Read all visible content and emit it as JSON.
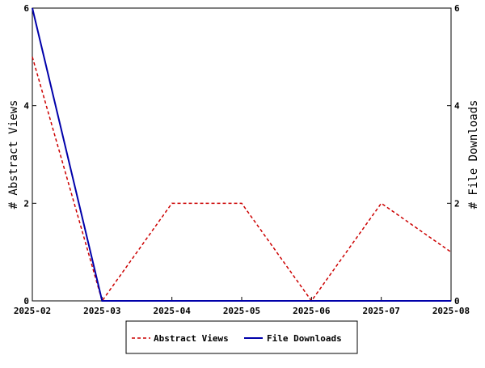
{
  "chart_data": {
    "type": "line",
    "categories": [
      "2025-02",
      "2025-03",
      "2025-04",
      "2025-05",
      "2025-06",
      "2025-07",
      "2025-08"
    ],
    "series": [
      {
        "name": "Abstract Views",
        "values": [
          5,
          0,
          2,
          2,
          0,
          2,
          1
        ],
        "color": "#cc0000",
        "dash": "dashed",
        "axis": "left"
      },
      {
        "name": "File Downloads",
        "values": [
          6,
          0,
          0,
          0,
          0,
          0,
          0
        ],
        "color": "#0000aa",
        "dash": "solid",
        "axis": "right"
      }
    ],
    "ylabel": "# Abstract Views",
    "y2label": "# File Downloads",
    "ylim": [
      0,
      6
    ],
    "y2lim": [
      0,
      6
    ],
    "yticks": [
      "0",
      "2",
      "4",
      "6"
    ],
    "y2ticks": [
      "0",
      "2",
      "4",
      "6"
    ],
    "grid": false,
    "legend_position": "bottom-center"
  }
}
